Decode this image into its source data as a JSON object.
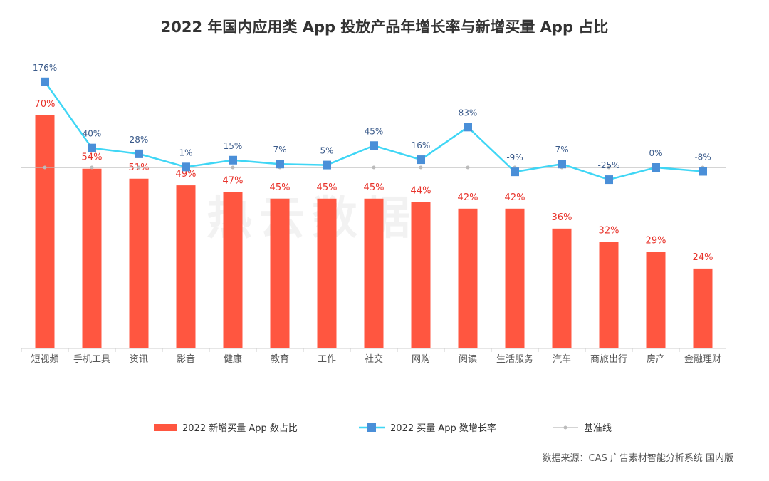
{
  "title": "2022 年国内应用类 App 投放产品年增长率与新增买量 App 占比",
  "watermark": "热云数据",
  "source": "数据来源：CAS 广告素材智能分析系统 国内版",
  "colors": {
    "bar": "#FF5640",
    "line": "#3FD6F5",
    "marker": "#4A8FD8",
    "baseline": "#BBBBBB",
    "bar_label": "#E8322A",
    "line_label": "#3A5A8A"
  },
  "chart_data": {
    "type": "bar+line",
    "categories": [
      "短视频",
      "手机工具",
      "资讯",
      "影音",
      "健康",
      "教育",
      "工作",
      "社交",
      "网购",
      "阅读",
      "生活服务",
      "汽车",
      "商旅出行",
      "房产",
      "金融理财"
    ],
    "series": [
      {
        "name": "2022 新增买量 App 数占比",
        "type": "bar",
        "values": [
          70,
          54,
          51,
          49,
          47,
          45,
          45,
          45,
          44,
          42,
          42,
          36,
          32,
          29,
          24
        ],
        "labels": [
          "70%",
          "54%",
          "51%",
          "49%",
          "47%",
          "45%",
          "45%",
          "45%",
          "44%",
          "42%",
          "42%",
          "36%",
          "32%",
          "29%",
          "24%"
        ]
      },
      {
        "name": "2022 买量 App 数增长率",
        "type": "line",
        "values": [
          176,
          40,
          28,
          1,
          15,
          7,
          5,
          45,
          16,
          83,
          -9,
          7,
          -25,
          0,
          -8
        ],
        "labels": [
          "176%",
          "40%",
          "28%",
          "1%",
          "15%",
          "7%",
          "5%",
          "45%",
          "16%",
          "83%",
          "-9%",
          "7%",
          "-25%",
          "0%",
          "-8%"
        ]
      },
      {
        "name": "基准线",
        "type": "line",
        "values": [
          0,
          0,
          0,
          0,
          0,
          0,
          0,
          0,
          0,
          0,
          0,
          0,
          0,
          0,
          0
        ]
      }
    ],
    "bar_ylim": [
      0,
      75
    ],
    "line_ylim": [
      -75,
      215
    ],
    "grid": false,
    "legend_position": "bottom"
  }
}
